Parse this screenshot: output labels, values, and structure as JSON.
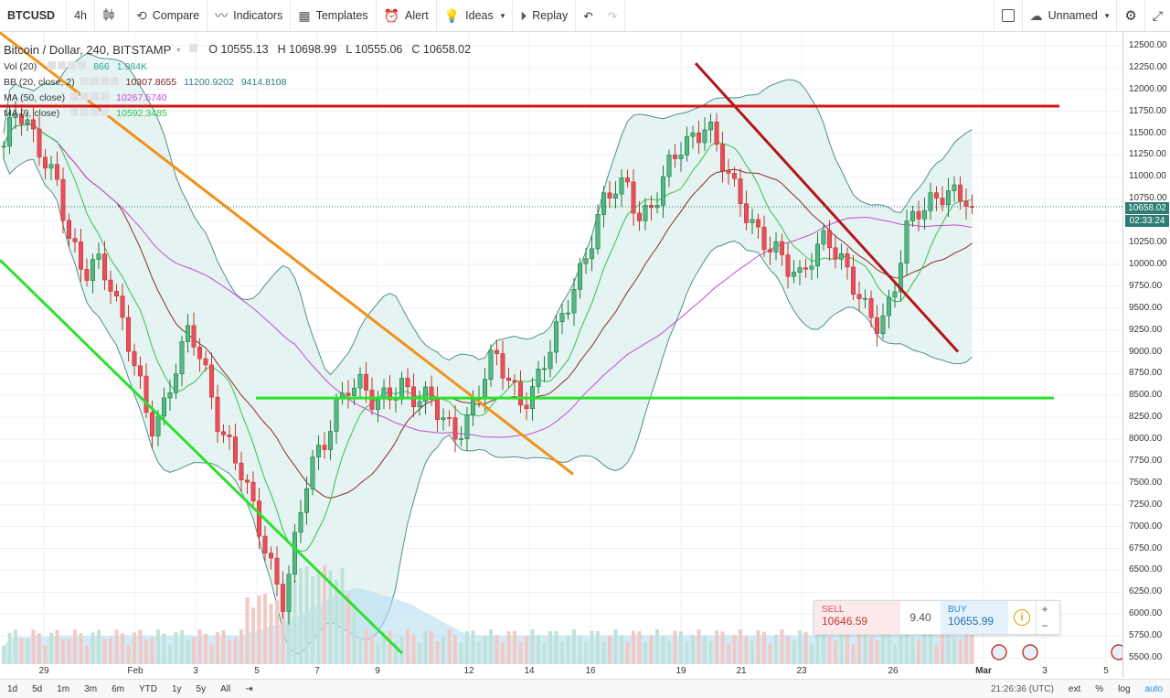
{
  "toolbar": {
    "symbol": "BTCUSD",
    "interval": "4h",
    "candle_icon": "candles-icon",
    "compare": "Compare",
    "indicators": "Indicators",
    "templates": "Templates",
    "alert": "Alert",
    "ideas": "Ideas",
    "replay": "Replay",
    "layout_name": "Unnamed"
  },
  "legend": {
    "title": "Bitcoin / Dollar, 240, BITSTAMP",
    "open": "O 10555.13",
    "high": "H 10698.99",
    "low": "L 10555.06",
    "close": "C 10658.02",
    "vol_label": "Vol (20)",
    "vol_v1": "866",
    "vol_v2": "1.984K",
    "bb_label": "BB (20, close, 2)",
    "bb_v1": "10307.8655",
    "bb_v2": "11200.9202",
    "bb_v3": "9414.8108",
    "ma1_label": "MA (50, close)",
    "ma1_v": "10267.5740",
    "ma2_label": "MA (9, close)",
    "ma2_v": "10592.3485"
  },
  "price_axis": [
    "12500.00",
    "12250.00",
    "12000.00",
    "11750.00",
    "11500.00",
    "11250.00",
    "11000.00",
    "10750.00",
    "10500.00",
    "10250.00",
    "10000.00",
    "9750.00",
    "9500.00",
    "9250.00",
    "9000.00",
    "8750.00",
    "8500.00",
    "8250.00",
    "8000.00",
    "7750.00",
    "7500.00",
    "7250.00",
    "7000.00",
    "6750.00",
    "6500.00",
    "6250.00",
    "6000.00",
    "5750.00",
    "5500.00"
  ],
  "last_price": "10658.02",
  "countdown": "02:33:24",
  "time_axis": [
    "29",
    "Feb",
    "3",
    "5",
    "7",
    "9",
    "12",
    "14",
    "16",
    "19",
    "21",
    "23",
    "26",
    "Mar",
    "3",
    "5"
  ],
  "ticket": {
    "sell_label": "SELL",
    "sell_price": "10646.59",
    "spread": "9.40",
    "buy_label": "BUY",
    "buy_price": "10655.99",
    "plus": "+",
    "minus": "−"
  },
  "bottom": {
    "ranges": [
      "1d",
      "5d",
      "1m",
      "3m",
      "6m",
      "YTD",
      "1y",
      "5y",
      "All"
    ],
    "goto_icon": "goto-date-icon",
    "clock": "21:26:36 (UTC)",
    "ext": "ext",
    "pct": "%",
    "log": "log",
    "auto": "auto"
  },
  "colors": {
    "up": "#26a69a",
    "down": "#c0392b",
    "bb_fill": "#dff1ef",
    "ma50": "#c34ad1",
    "ma9": "#34c04a",
    "basis": "#8b2b2b",
    "trend_orange": "#f0921c",
    "trend_green": "#2ee02e",
    "trend_red": "#b4151b",
    "resistance": "#d31414"
  },
  "chart_data": {
    "type": "candlestick",
    "title": "Bitcoin / Dollar, 240, BITSTAMP",
    "ylim": [
      5500,
      12500
    ],
    "x_ticks": [
      "29",
      "Feb",
      "3",
      "5",
      "7",
      "9",
      "12",
      "14",
      "16",
      "19",
      "21",
      "23",
      "26",
      "Mar",
      "3",
      "5"
    ],
    "close_path": [
      11350,
      11700,
      11500,
      11300,
      11000,
      10200,
      9800,
      10100,
      9900,
      9300,
      8700,
      8100,
      8400,
      8900,
      9200,
      8800,
      8300,
      8000,
      7600,
      7000,
      6600,
      6200,
      6900,
      7600,
      7800,
      8400,
      8700,
      8600,
      8300,
      8500,
      8700,
      8500,
      8400,
      8200,
      8100,
      8300,
      8600,
      8900,
      8700,
      8500,
      8600,
      8900,
      9300,
      9800,
      10200,
      10600,
      10800,
      10900,
      10600,
      10700,
      11000,
      11300,
      11500,
      11700,
      11200,
      10800,
      10600,
      10400,
      10200,
      9900,
      9800,
      10200,
      10400,
      10000,
      9700,
      9500,
      9400,
      9600,
      10300,
      10600,
      10800,
      10900,
      10700,
      10658
    ],
    "resistance_levels": [
      11810,
      8470
    ],
    "trend_lines": [
      {
        "name": "orange-downtrend",
        "points": [
          [
            "Jan 28",
            12650
          ],
          [
            "Feb 15",
            7600
          ]
        ]
      },
      {
        "name": "green-channel-lower",
        "points": [
          [
            "Jan 28",
            10050
          ],
          [
            "Feb 9",
            5550
          ]
        ]
      },
      {
        "name": "red-downtrend",
        "points": [
          [
            "Feb 18",
            12300
          ],
          [
            "Feb 27",
            9000
          ]
        ]
      }
    ],
    "volume_max_label": "1.984K"
  }
}
